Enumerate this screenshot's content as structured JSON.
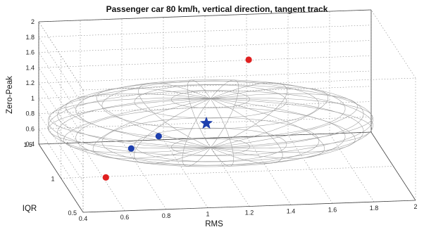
{
  "chart_data": {
    "type": "scatter",
    "title": "Passenger car 80 km/h, vertical direction, tangent track",
    "xlabel": "RMS",
    "ylabel": "IQR",
    "zlabel": "Zero-Peak",
    "x_ticks": [
      "0.4",
      "0.6",
      "0.8",
      "1",
      "1.2",
      "1.4",
      "1.6",
      "1.8",
      "2"
    ],
    "y_ticks": [
      "0.5",
      "1",
      "1.5"
    ],
    "z_ticks": [
      "0.4",
      "0.6",
      "0.8",
      "1",
      "1.2",
      "1.4",
      "1.6",
      "1.8",
      "2"
    ],
    "xlim": [
      0.4,
      2.0
    ],
    "ylim": [
      0.5,
      1.5
    ],
    "zlim": [
      0.4,
      2.0
    ],
    "grid": true,
    "ellipsoid": {
      "center": [
        1.12,
        1.0,
        1.05
      ],
      "radii": [
        0.78,
        0.52,
        0.32
      ]
    },
    "points": [
      {
        "x": 1.4,
        "y": 1.45,
        "z": 1.45,
        "color": "#e02020",
        "marker": "circle"
      },
      {
        "x": 1.1,
        "y": 1.0,
        "z": 1.05,
        "color": "#1d3fae",
        "marker": "star"
      },
      {
        "x": 0.86,
        "y": 0.95,
        "z": 0.95,
        "color": "#1d3fae",
        "marker": "circle"
      },
      {
        "x": 0.7,
        "y": 0.82,
        "z": 0.92,
        "color": "#1d3fae",
        "marker": "circle"
      },
      {
        "x": 0.52,
        "y": 0.55,
        "z": 0.8,
        "color": "#e02020",
        "marker": "circle"
      }
    ]
  }
}
